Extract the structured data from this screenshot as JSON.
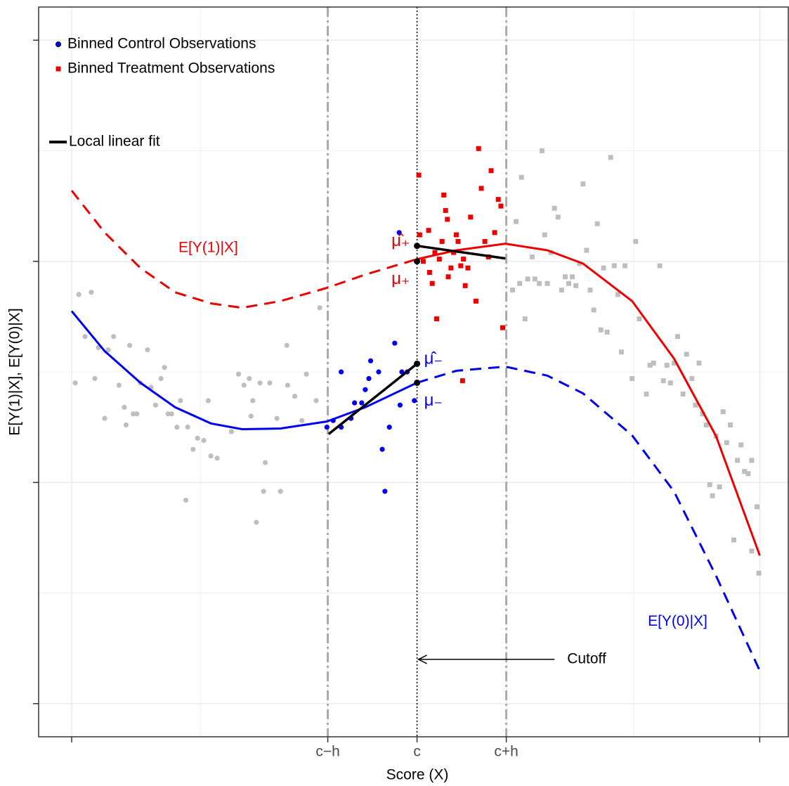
{
  "chart_data": {
    "type": "scatter",
    "xlabel": "Score (X)",
    "ylabel": "E[Y(1)|X], E[Y(0)|X]",
    "xlim": [
      -4.24,
      4.16
    ],
    "ylim": [
      -1.15,
      2.15
    ],
    "xticks": [
      {
        "value": -3.87,
        "label": null
      },
      {
        "value": -1,
        "label": "c−h"
      },
      {
        "value": 0,
        "label": "c"
      },
      {
        "value": 1,
        "label": "c+h"
      },
      {
        "value": 3.84,
        "label": null
      }
    ],
    "xminor": [
      -2.43,
      2.43
    ],
    "yticks": [
      {
        "value": -1,
        "label": null
      },
      {
        "value": 0,
        "label": null
      },
      {
        "value": 1,
        "label": null
      },
      {
        "value": 2,
        "label": null
      }
    ],
    "yminor": [
      -0.5,
      0.5,
      1.5
    ],
    "grid": true,
    "legend": "top-left",
    "series": [
      {
        "color": "#bebebe",
        "shape": "circle",
        "x": [
          -3.83,
          -3.79,
          -3.72,
          -3.65,
          -3.61,
          -3.57,
          -3.5,
          -3.46,
          -3.4,
          -3.34,
          -3.28,
          -3.26,
          -3.22,
          -3.18,
          -3.14,
          -3.1,
          -3.02,
          -2.98,
          -2.93,
          -2.87,
          -2.83,
          -2.79,
          -2.75,
          -2.69,
          -2.65,
          -2.59,
          -2.57,
          -2.51,
          -2.46,
          -2.39,
          -2.31,
          -2.24,
          -2.34,
          -2.08,
          -2.0,
          -1.94,
          -1.88,
          -1.84,
          -1.76,
          -1.7,
          -1.65,
          -1.57,
          -1.53,
          -1.45,
          -1.37,
          -1.29,
          -1.24,
          -1.13,
          -1.09,
          -1.8,
          -1.46,
          -1.72,
          -1.86
        ],
        "values": [
          0.45,
          0.85,
          0.66,
          0.86,
          0.47,
          0.61,
          0.29,
          0.6,
          0.66,
          0.44,
          0.34,
          0.26,
          0.62,
          0.31,
          0.31,
          0.45,
          0.6,
          0.43,
          0.35,
          0.47,
          0.52,
          0.31,
          0.31,
          0.25,
          0.37,
          -0.08,
          0.25,
          0.15,
          0.2,
          0.19,
          0.12,
          0.11,
          0.37,
          0.23,
          0.49,
          0.44,
          0.47,
          0.37,
          0.45,
          0.09,
          0.45,
          0.29,
          -0.04,
          0.44,
          0.39,
          0.28,
          0.49,
          0.37,
          0.79,
          -0.18,
          0.62,
          -0.04,
          0.3
        ]
      },
      {
        "name": "Binned Control Observations",
        "color": "#0000ee",
        "shape": "circle",
        "x": [
          -0.2,
          -0.85,
          -1.01,
          -0.94,
          -0.85,
          -0.74,
          -0.7,
          -0.62,
          -0.58,
          -0.54,
          -0.52,
          -0.43,
          -0.39,
          -0.36,
          -0.31,
          -0.25,
          -0.19,
          -0.17,
          -0.11,
          -0.03
        ],
        "values": [
          1.13,
          0.5,
          0.25,
          0.28,
          0.25,
          0.29,
          0.36,
          0.36,
          0.42,
          0.47,
          0.55,
          0.5,
          0.15,
          -0.04,
          0.25,
          0.63,
          0.35,
          0.5,
          0.5,
          0.37
        ]
      },
      {
        "name": "Binned Treatment Observations",
        "color": "#ee0000",
        "shape": "square",
        "x": [
          0.02,
          0.03,
          0.07,
          0.13,
          0.14,
          0.17,
          0.2,
          0.22,
          0.25,
          0.28,
          0.3,
          0.32,
          0.34,
          0.35,
          0.38,
          0.41,
          0.44,
          0.46,
          0.49,
          0.52,
          0.54,
          0.57,
          0.6,
          0.66,
          0.69,
          0.72,
          0.76,
          0.8,
          0.83,
          0.87,
          0.91,
          0.94,
          0.96,
          0.51
        ],
        "values": [
          1.39,
          1.12,
          1.0,
          1.14,
          0.95,
          0.9,
          1.04,
          0.74,
          1.01,
          1.09,
          1.3,
          1.23,
          1.19,
          0.93,
          0.97,
          1.04,
          1.12,
          1.09,
          0.98,
          1.01,
          0.89,
          0.97,
          1.2,
          0.82,
          1.51,
          1.33,
          1.09,
          1.02,
          1.41,
          1.13,
          1.28,
          1.25,
          0.7,
          0.46
        ]
      },
      {
        "color": "#bebebe",
        "shape": "square",
        "x": [
          1.07,
          1.11,
          1.15,
          1.17,
          1.21,
          1.24,
          1.29,
          1.32,
          1.37,
          1.4,
          1.43,
          1.46,
          1.5,
          1.54,
          1.58,
          1.62,
          1.66,
          1.7,
          1.74,
          1.78,
          1.82,
          1.86,
          1.9,
          1.94,
          1.98,
          2.02,
          2.06,
          2.09,
          2.13,
          2.17,
          2.21,
          2.25,
          2.29,
          2.33,
          2.41,
          2.45,
          2.49,
          2.57,
          2.61,
          2.65,
          2.72,
          2.76,
          2.8,
          2.84,
          2.88,
          2.92,
          2.98,
          3.02,
          3.08,
          3.12,
          3.16,
          3.2,
          3.24,
          3.28,
          3.31,
          3.35,
          3.39,
          3.43,
          3.47,
          3.51,
          3.55,
          3.59,
          3.63,
          3.67,
          3.71,
          3.75,
          3.81,
          3.83,
          3.75
        ],
        "values": [
          0.87,
          1.18,
          0.9,
          1.38,
          0.74,
          0.92,
          1.02,
          0.92,
          0.9,
          1.5,
          1.12,
          0.9,
          1.04,
          1.24,
          1.2,
          0.87,
          0.93,
          0.9,
          0.93,
          0.89,
          0.99,
          1.35,
          1.05,
          0.87,
          0.78,
          1.17,
          0.69,
          0.97,
          0.68,
          1.47,
          0.98,
          0.85,
          0.59,
          0.98,
          0.47,
          1.09,
          0.74,
          0.4,
          0.53,
          0.54,
          0.98,
          0.46,
          0.53,
          0.45,
          0.54,
          0.66,
          0.4,
          0.58,
          0.47,
          0.35,
          0.54,
          0.31,
          0.26,
          -0.01,
          -0.06,
          0.21,
          -0.02,
          0.32,
          0.18,
          0.26,
          -0.26,
          0.1,
          0.17,
          0.05,
          0.04,
          0.1,
          -0.11,
          -0.41,
          -0.31
        ]
      }
    ],
    "lines": [
      {
        "color": "#ee0000",
        "dashed": true,
        "x": [
          -3.87,
          -3.5,
          -3.1,
          -2.71,
          -2.31,
          -1.96,
          -1.53,
          -1.01,
          -0.58,
          0
        ],
        "values": [
          1.32,
          1.13,
          0.97,
          0.86,
          0.81,
          0.79,
          0.82,
          0.88,
          0.94,
          1.01
        ]
      },
      {
        "color": "#ee0000",
        "dashed": false,
        "x": [
          0,
          0.44,
          0.99,
          1.46,
          1.86,
          2.41,
          2.88,
          3.35,
          3.84
        ],
        "values": [
          1.01,
          1.05,
          1.08,
          1.05,
          0.99,
          0.82,
          0.56,
          0.21,
          -0.33
        ]
      },
      {
        "color": "#0000ee",
        "dashed": false,
        "x": [
          -3.87,
          -3.5,
          -3.1,
          -2.71,
          -2.31,
          -1.96,
          -1.53,
          -1.01,
          -0.58,
          0
        ],
        "values": [
          0.775,
          0.594,
          0.451,
          0.34,
          0.267,
          0.241,
          0.244,
          0.276,
          0.34,
          0.451
        ]
      },
      {
        "color": "#0000ee",
        "dashed": true,
        "x": [
          0,
          0.44,
          0.99,
          1.46,
          1.86,
          2.41,
          2.88,
          3.35,
          3.84
        ],
        "values": [
          0.451,
          0.505,
          0.524,
          0.483,
          0.403,
          0.213,
          -0.041,
          -0.422,
          -0.851
        ]
      }
    ],
    "fit": {
      "name": "Local linear fit",
      "color": "#000000",
      "segments": [
        {
          "x": [
            -0.99,
            0
          ],
          "values": [
            0.219,
            0.537
          ]
        },
        {
          "x": [
            0,
            0.99
          ],
          "values": [
            1.07,
            1.013
          ]
        }
      ]
    },
    "vlines": [
      {
        "x": -1,
        "style": "dashdot"
      },
      {
        "x": 0,
        "style": "dotted"
      },
      {
        "x": 1,
        "style": "dashdot"
      }
    ],
    "estimates": [
      {
        "text": "μ̂₊",
        "x": 0,
        "y": 1.07,
        "color": "#ee0000",
        "side": "left"
      },
      {
        "text": "μ₊",
        "x": 0,
        "y": 1.0,
        "color": "#ee0000",
        "side": "left-below"
      },
      {
        "text": "μ̂₋",
        "x": 0,
        "y": 0.537,
        "color": "#0000ee",
        "side": "right"
      },
      {
        "text": "μ₋",
        "x": 0,
        "y": 0.451,
        "color": "#0000ee",
        "side": "right-below"
      }
    ],
    "annotations": [
      {
        "text": "E[Y(1)|X]",
        "x": -2.34,
        "y": 1.06,
        "color": "#ee0000"
      },
      {
        "text": "E[Y(0)|X]",
        "x": 2.92,
        "y": -0.63,
        "color": "#0000ee"
      }
    ],
    "arrow": {
      "text": "Cutoff",
      "x": 0,
      "y": -0.8,
      "from_x": 1.54
    }
  }
}
